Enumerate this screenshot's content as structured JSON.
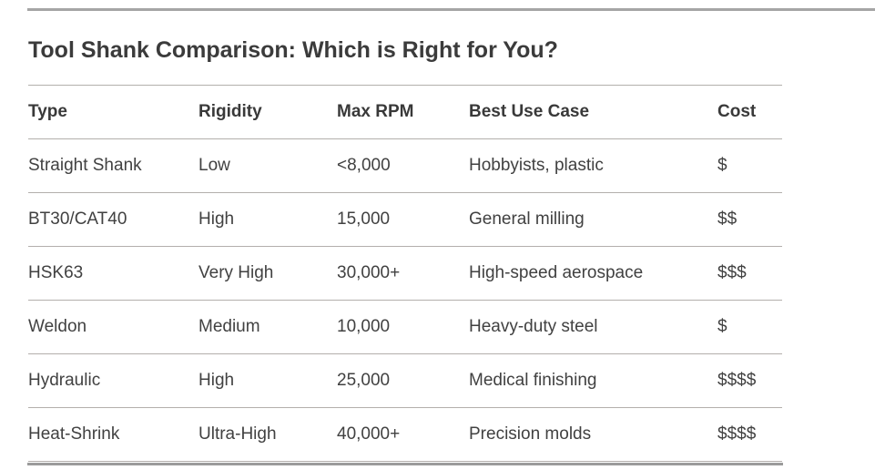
{
  "page": {
    "title": "Tool Shank Comparison: Which is Right for You?"
  },
  "table": {
    "columns": [
      "Type",
      "Rigidity",
      "Max RPM",
      "Best Use Case",
      "Cost"
    ],
    "rows": [
      [
        "Straight Shank",
        "Low",
        "<8,000",
        "Hobbyists, plastic",
        "$"
      ],
      [
        "BT30/CAT40",
        "High",
        "15,000",
        "General milling",
        "$$"
      ],
      [
        "HSK63",
        "Very High",
        "30,000+",
        "High-speed aerospace",
        "$$$"
      ],
      [
        "Weldon",
        "Medium",
        "10,000",
        "Heavy-duty steel",
        "$"
      ],
      [
        "Hydraulic",
        "High",
        "25,000",
        "Medical finishing",
        "$$$$"
      ],
      [
        "Heat-Shrink",
        "Ultra-High",
        "40,000+",
        "Precision molds",
        "$$$$"
      ]
    ]
  },
  "colors": {
    "heading_text": "#3b3b3b",
    "cell_text": "#414141",
    "row_divider": "#b3afac",
    "top_rule": "#a5a5a5",
    "bottom_rule": "#9b9b9b",
    "background": "#ffffff"
  }
}
